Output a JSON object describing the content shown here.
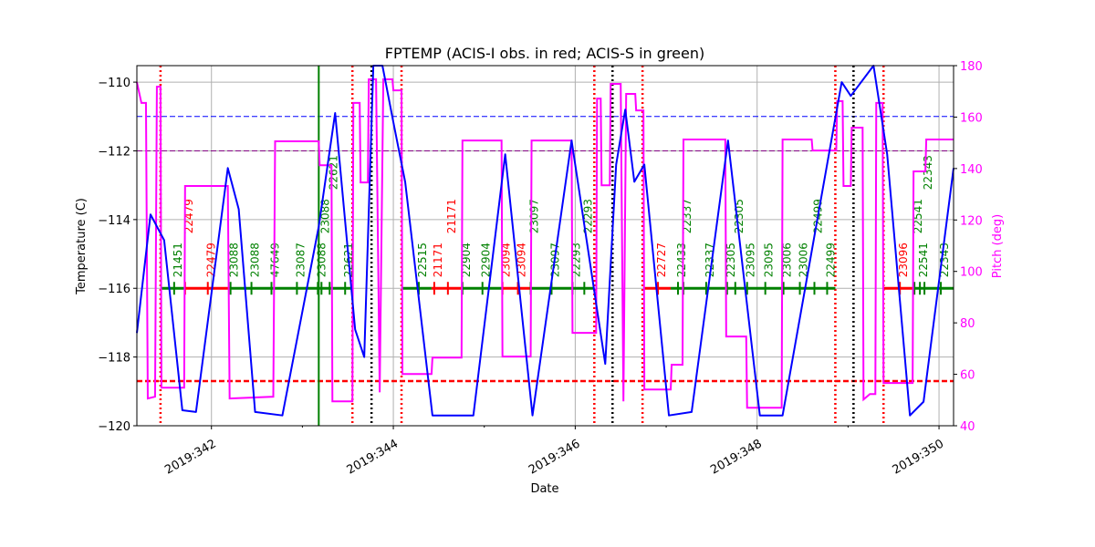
{
  "chart_data": {
    "type": "line",
    "title": "FPTEMP (ACIS-I obs. in red; ACIS-S in green)",
    "xlabel": "Date",
    "ylabel": "Temperature (C)",
    "ylabel_right": "Pitch (deg)",
    "xlim": [
      341.18,
      350.16
    ],
    "ylim": [
      -120,
      -109.52
    ],
    "ylim_right": [
      40,
      180
    ],
    "grid": true,
    "x_ticks": [
      342,
      344,
      346,
      348,
      350
    ],
    "x_tick_labels": [
      "2019:342",
      "2019:344",
      "2019:346",
      "2019:348",
      "2019:350"
    ],
    "y_ticks": [
      -120,
      -118,
      -116,
      -114,
      -112,
      -110
    ],
    "y_ticks_right": [
      40,
      60,
      80,
      100,
      120,
      140,
      160,
      180
    ],
    "colors": {
      "temperature": "#0000ff",
      "pitch": "#ff00ff",
      "acis_i": "#ff0000",
      "acis_s": "#008000"
    },
    "temperature": [
      [
        341.18,
        -117.3
      ],
      [
        341.33,
        -113.85
      ],
      [
        341.48,
        -114.6
      ],
      [
        341.68,
        -119.55
      ],
      [
        341.83,
        -119.6
      ],
      [
        342.18,
        -112.5
      ],
      [
        342.3,
        -113.7
      ],
      [
        342.48,
        -119.6
      ],
      [
        342.78,
        -119.7
      ],
      [
        343.18,
        -114.2
      ],
      [
        343.36,
        -110.9
      ],
      [
        343.58,
        -117.2
      ],
      [
        343.68,
        -118.0
      ],
      [
        343.78,
        -109.5
      ],
      [
        343.88,
        -109.5
      ],
      [
        344.01,
        -111.3
      ],
      [
        344.13,
        -112.9
      ],
      [
        344.43,
        -119.7
      ],
      [
        344.88,
        -119.7
      ],
      [
        345.23,
        -112.1
      ],
      [
        345.53,
        -119.7
      ],
      [
        345.96,
        -111.7
      ],
      [
        346.33,
        -118.2
      ],
      [
        346.45,
        -112.4
      ],
      [
        346.55,
        -110.8
      ],
      [
        346.65,
        -112.9
      ],
      [
        346.76,
        -112.4
      ],
      [
        347.03,
        -119.7
      ],
      [
        347.28,
        -119.6
      ],
      [
        347.68,
        -111.7
      ],
      [
        348.03,
        -119.7
      ],
      [
        348.28,
        -119.7
      ],
      [
        348.93,
        -110.0
      ],
      [
        349.03,
        -110.4
      ],
      [
        349.28,
        -109.5
      ],
      [
        349.43,
        -112.1
      ],
      [
        349.68,
        -119.7
      ],
      [
        349.83,
        -119.3
      ],
      [
        350.16,
        -112.5
      ]
    ],
    "pitch": [
      [
        341.18,
        173.6
      ],
      [
        341.23,
        165.5
      ],
      [
        341.28,
        165.5
      ],
      [
        341.3,
        50.6
      ],
      [
        341.38,
        51.3
      ],
      [
        341.4,
        171.8
      ],
      [
        341.44,
        171.8
      ],
      [
        341.45,
        54.8
      ],
      [
        341.7,
        54.8
      ],
      [
        341.71,
        133.2
      ],
      [
        342.18,
        133.2
      ],
      [
        342.2,
        50.6
      ],
      [
        342.68,
        51.3
      ],
      [
        342.7,
        150.6
      ],
      [
        343.18,
        150.6
      ],
      [
        343.19,
        141.3
      ],
      [
        343.32,
        141.3
      ],
      [
        343.33,
        49.5
      ],
      [
        343.55,
        49.5
      ],
      [
        343.56,
        165.5
      ],
      [
        343.63,
        165.5
      ],
      [
        343.64,
        134.6
      ],
      [
        343.72,
        134.6
      ],
      [
        343.73,
        174.7
      ],
      [
        343.81,
        174.7
      ],
      [
        343.85,
        53.0
      ],
      [
        343.89,
        174.7
      ],
      [
        343.99,
        174.7
      ],
      [
        344.0,
        170.4
      ],
      [
        344.09,
        170.4
      ],
      [
        344.1,
        60.1
      ],
      [
        344.42,
        60.1
      ],
      [
        344.43,
        66.5
      ],
      [
        344.75,
        66.5
      ],
      [
        344.76,
        150.9
      ],
      [
        345.19,
        150.9
      ],
      [
        345.2,
        66.9
      ],
      [
        345.51,
        66.9
      ],
      [
        345.52,
        150.9
      ],
      [
        345.96,
        150.9
      ],
      [
        345.97,
        76.1
      ],
      [
        346.23,
        76.1
      ],
      [
        346.24,
        167.2
      ],
      [
        346.28,
        167.2
      ],
      [
        346.29,
        133.5
      ],
      [
        346.38,
        133.5
      ],
      [
        346.39,
        172.9
      ],
      [
        346.5,
        172.9
      ],
      [
        346.53,
        49.5
      ],
      [
        346.56,
        169.0
      ],
      [
        346.66,
        169.0
      ],
      [
        346.67,
        162.6
      ],
      [
        346.75,
        162.6
      ],
      [
        346.76,
        54.1
      ],
      [
        347.05,
        54.1
      ],
      [
        347.06,
        63.7
      ],
      [
        347.18,
        63.7
      ],
      [
        347.19,
        151.3
      ],
      [
        347.65,
        151.3
      ],
      [
        347.66,
        74.7
      ],
      [
        347.88,
        74.7
      ],
      [
        347.89,
        47.0
      ],
      [
        348.27,
        47.0
      ],
      [
        348.28,
        151.3
      ],
      [
        348.6,
        151.3
      ],
      [
        348.61,
        147.0
      ],
      [
        348.87,
        147.0
      ],
      [
        348.88,
        166.2
      ],
      [
        348.94,
        166.2
      ],
      [
        348.95,
        133.2
      ],
      [
        349.03,
        133.2
      ],
      [
        349.04,
        155.9
      ],
      [
        349.16,
        155.9
      ],
      [
        349.17,
        50.2
      ],
      [
        349.24,
        52.3
      ],
      [
        349.3,
        52.3
      ],
      [
        349.31,
        165.5
      ],
      [
        349.38,
        165.5
      ],
      [
        349.39,
        56.6
      ],
      [
        349.71,
        56.6
      ],
      [
        349.72,
        138.9
      ],
      [
        349.85,
        138.9
      ],
      [
        349.86,
        151.3
      ],
      [
        350.16,
        151.3
      ]
    ],
    "hlines": [
      {
        "y": -111,
        "color": "#0000ff",
        "style": "dashed",
        "width": 1
      },
      {
        "y": -112,
        "color": "#800080",
        "style": "dashed",
        "width": 1
      },
      {
        "y": -118.7,
        "color": "#ff0000",
        "style": "dashed",
        "width": 2.5
      }
    ],
    "vlines": [
      {
        "x": 341.44,
        "color": "#ff0000",
        "style": "dotted"
      },
      {
        "x": 343.55,
        "color": "#ff0000",
        "style": "dotted"
      },
      {
        "x": 344.09,
        "color": "#ff0000",
        "style": "dotted"
      },
      {
        "x": 346.21,
        "color": "#ff0000",
        "style": "dotted"
      },
      {
        "x": 346.74,
        "color": "#ff0000",
        "style": "dotted"
      },
      {
        "x": 348.86,
        "color": "#ff0000",
        "style": "dotted"
      },
      {
        "x": 349.39,
        "color": "#ff0000",
        "style": "dotted"
      },
      {
        "x": 343.76,
        "color": "#000000",
        "style": "dotted"
      },
      {
        "x": 346.41,
        "color": "#000000",
        "style": "dotted"
      },
      {
        "x": 349.06,
        "color": "#000000",
        "style": "dotted"
      },
      {
        "x": 343.18,
        "color": "#008000",
        "style": "solid"
      }
    ],
    "obs_bar_y": -116,
    "obs_segments": [
      {
        "start": 341.45,
        "end": 341.7,
        "color": "#008000"
      },
      {
        "start": 341.7,
        "end": 342.2,
        "color": "#ff0000"
      },
      {
        "start": 342.2,
        "end": 343.56,
        "color": "#008000"
      },
      {
        "start": 344.1,
        "end": 344.42,
        "color": "#008000"
      },
      {
        "start": 344.42,
        "end": 344.75,
        "color": "#ff0000"
      },
      {
        "start": 344.75,
        "end": 345.19,
        "color": "#008000"
      },
      {
        "start": 345.19,
        "end": 345.51,
        "color": "#ff0000"
      },
      {
        "start": 345.51,
        "end": 346.2,
        "color": "#008000"
      },
      {
        "start": 346.75,
        "end": 347.05,
        "color": "#ff0000"
      },
      {
        "start": 347.05,
        "end": 348.86,
        "color": "#008000"
      },
      {
        "start": 349.39,
        "end": 349.71,
        "color": "#ff0000"
      },
      {
        "start": 349.71,
        "end": 350.16,
        "color": "#008000"
      }
    ],
    "obsids": [
      {
        "x": 341.63,
        "label": "21451",
        "color": "#008000"
      },
      {
        "x": 341.75,
        "label": "22479",
        "color": "#ff0000"
      },
      {
        "x": 342.0,
        "label": "22479",
        "color": "#ff0000"
      },
      {
        "x": 342.25,
        "label": "23088",
        "color": "#008000"
      },
      {
        "x": 342.48,
        "label": "23088",
        "color": "#008000"
      },
      {
        "x": 342.7,
        "label": "47649",
        "color": "#008000"
      },
      {
        "x": 342.98,
        "label": "23087",
        "color": "#008000"
      },
      {
        "x": 343.21,
        "label": "23088",
        "color": "#008000"
      },
      {
        "x": 343.25,
        "label": "23088",
        "color": "#008000"
      },
      {
        "x": 343.34,
        "label": "22621",
        "color": "#008000"
      },
      {
        "x": 343.51,
        "label": "22621",
        "color": "#008000"
      },
      {
        "x": 344.32,
        "label": "22515",
        "color": "#008000"
      },
      {
        "x": 344.49,
        "label": "21171",
        "color": "#ff0000"
      },
      {
        "x": 344.64,
        "label": "21171",
        "color": "#ff0000"
      },
      {
        "x": 344.8,
        "label": "22904",
        "color": "#008000"
      },
      {
        "x": 345.02,
        "label": "22904",
        "color": "#008000"
      },
      {
        "x": 345.24,
        "label": "23094",
        "color": "#ff0000"
      },
      {
        "x": 345.41,
        "label": "23094",
        "color": "#ff0000"
      },
      {
        "x": 345.55,
        "label": "23097",
        "color": "#008000"
      },
      {
        "x": 345.78,
        "label": "23097",
        "color": "#008000"
      },
      {
        "x": 346.01,
        "label": "22293",
        "color": "#008000"
      },
      {
        "x": 346.14,
        "label": "22293",
        "color": "#008000"
      },
      {
        "x": 346.95,
        "label": "22727",
        "color": "#ff0000"
      },
      {
        "x": 347.17,
        "label": "22433",
        "color": "#008000"
      },
      {
        "x": 347.23,
        "label": "22337",
        "color": "#008000"
      },
      {
        "x": 347.48,
        "label": "22337",
        "color": "#008000"
      },
      {
        "x": 347.71,
        "label": "22305",
        "color": "#008000"
      },
      {
        "x": 347.8,
        "label": "22305",
        "color": "#008000"
      },
      {
        "x": 347.93,
        "label": "23095",
        "color": "#008000"
      },
      {
        "x": 348.13,
        "label": "23095",
        "color": "#008000"
      },
      {
        "x": 348.33,
        "label": "23006",
        "color": "#008000"
      },
      {
        "x": 348.51,
        "label": "23006",
        "color": "#008000"
      },
      {
        "x": 348.67,
        "label": "22499",
        "color": "#008000"
      },
      {
        "x": 348.81,
        "label": "22499",
        "color": "#008000"
      },
      {
        "x": 349.61,
        "label": "23096",
        "color": "#ff0000"
      },
      {
        "x": 349.77,
        "label": "22541",
        "color": "#008000"
      },
      {
        "x": 349.83,
        "label": "22541",
        "color": "#008000"
      },
      {
        "x": 349.88,
        "label": "22343",
        "color": "#008000"
      },
      {
        "x": 350.06,
        "label": "22343",
        "color": "#008000"
      }
    ]
  }
}
